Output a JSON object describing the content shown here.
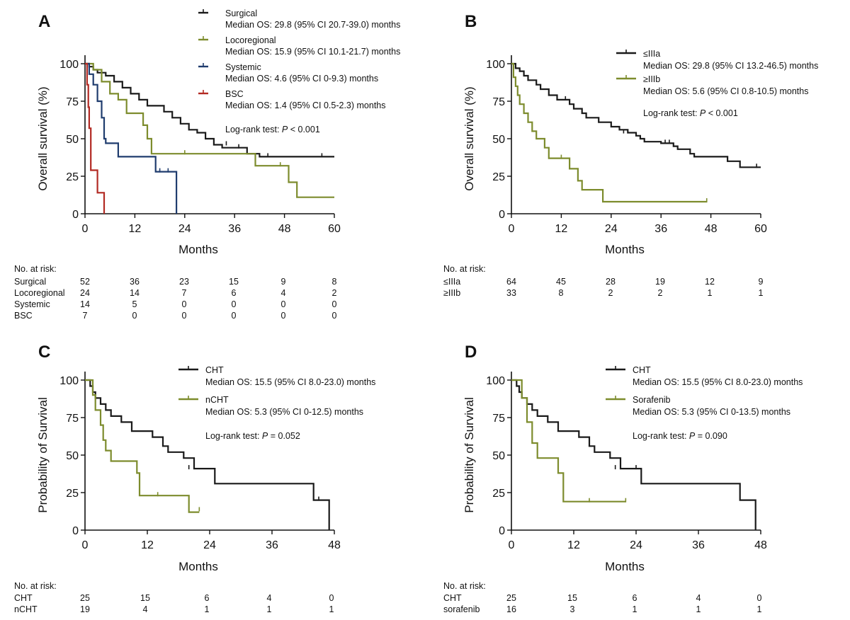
{
  "figure": {
    "panels": [
      {
        "letter": "A",
        "ylabel": "Overall survival (%)",
        "xlabel": "Months",
        "logrank_prefix": "Log-rank test: ",
        "logrank_p_symbol": "P",
        "logrank_suffix": " < 0.001",
        "risk_title": "No. at risk:",
        "risk_rows": [
          {
            "label": "Surgical",
            "values": [
              "52",
              "36",
              "23",
              "15",
              "9",
              "8"
            ]
          },
          {
            "label": "Locoregional",
            "values": [
              "24",
              "14",
              "7",
              "6",
              "4",
              "2"
            ]
          },
          {
            "label": "Systemic",
            "values": [
              "14",
              "5",
              "0",
              "0",
              "0",
              "0"
            ]
          },
          {
            "label": "BSC",
            "values": [
              "7",
              "0",
              "0",
              "0",
              "0",
              "0"
            ]
          }
        ]
      },
      {
        "letter": "B",
        "ylabel": "Overall survival (%)",
        "xlabel": "Months",
        "logrank_prefix": "Log-rank test: ",
        "logrank_p_symbol": "P",
        "logrank_suffix": " < 0.001",
        "risk_title": "No. at risk:",
        "risk_rows": [
          {
            "label": "≤IIIa",
            "values": [
              "64",
              "45",
              "28",
              "19",
              "12",
              "9"
            ]
          },
          {
            "label": "≥IIIb",
            "values": [
              "33",
              "8",
              "2",
              "2",
              "1",
              "1"
            ]
          }
        ]
      },
      {
        "letter": "C",
        "ylabel": "Probability of Survival",
        "xlabel": "Months",
        "logrank_prefix": "Log-rank test: ",
        "logrank_p_symbol": "P",
        "logrank_suffix": " = 0.052",
        "risk_title": "No. at risk:",
        "risk_rows": [
          {
            "label": "CHT",
            "values": [
              "25",
              "15",
              "6",
              "4",
              "0"
            ]
          },
          {
            "label": "nCHT",
            "values": [
              "19",
              "4",
              "1",
              "1",
              "1"
            ]
          }
        ]
      },
      {
        "letter": "D",
        "ylabel": "Probability of Survival",
        "xlabel": "Months",
        "logrank_prefix": "Log-rank test: ",
        "logrank_p_symbol": "P",
        "logrank_suffix": " = 0.090",
        "risk_title": "No. at risk:",
        "risk_rows": [
          {
            "label": "CHT",
            "values": [
              "25",
              "15",
              "6",
              "4",
              "0"
            ]
          },
          {
            "label": "sorafenib",
            "values": [
              "16",
              "3",
              "1",
              "1",
              "1"
            ]
          }
        ]
      }
    ]
  },
  "chart_data": [
    {
      "type": "line",
      "step": true,
      "xlabel": "Months",
      "ylabel": "Overall survival (%)",
      "xlim": [
        0,
        60
      ],
      "ylim": [
        0,
        100
      ],
      "xticks": [
        0,
        12,
        24,
        36,
        48,
        60
      ],
      "yticks": [
        0,
        25,
        50,
        75,
        100
      ],
      "series": [
        {
          "name": "Surgical",
          "median": "Median OS: 29.8 (95% CI 20.7-39.0) months",
          "color": "#1a1a1a",
          "points": [
            [
              0,
              100
            ],
            [
              1,
              98
            ],
            [
              2,
              96
            ],
            [
              3,
              94
            ],
            [
              5,
              92
            ],
            [
              7,
              88
            ],
            [
              9,
              84
            ],
            [
              11,
              80
            ],
            [
              13,
              76
            ],
            [
              15,
              72
            ],
            [
              19,
              68
            ],
            [
              21,
              64
            ],
            [
              23,
              60
            ],
            [
              25,
              56
            ],
            [
              27,
              54
            ],
            [
              29,
              50
            ],
            [
              31,
              46
            ],
            [
              33,
              44
            ],
            [
              39,
              40
            ],
            [
              42,
              38
            ],
            [
              60,
              38
            ]
          ],
          "censored": [
            [
              34,
              46
            ],
            [
              37,
              44
            ],
            [
              44,
              38
            ],
            [
              57,
              38
            ]
          ]
        },
        {
          "name": "Locoregional",
          "median": "Median OS: 15.9 (95% CI 10.1-21.7) months",
          "color": "#7d8c2d",
          "points": [
            [
              0,
              100
            ],
            [
              2,
              96
            ],
            [
              4,
              88
            ],
            [
              6,
              80
            ],
            [
              8,
              76
            ],
            [
              10,
              67
            ],
            [
              14,
              59
            ],
            [
              15,
              50
            ],
            [
              16,
              40
            ],
            [
              40,
              40
            ],
            [
              41,
              32
            ],
            [
              49,
              21
            ],
            [
              51,
              11
            ],
            [
              60,
              11
            ]
          ],
          "censored": [
            [
              24,
              40
            ],
            [
              47,
              32
            ]
          ]
        },
        {
          "name": "Systemic",
          "median": "Median OS: 4.6 (95% CI 0-9.3) months",
          "color": "#1f3c6e",
          "points": [
            [
              0,
              100
            ],
            [
              1,
              93
            ],
            [
              2,
              86
            ],
            [
              3,
              75
            ],
            [
              4,
              64
            ],
            [
              4.6,
              50
            ],
            [
              5,
              47
            ],
            [
              8,
              38
            ],
            [
              17,
              28
            ],
            [
              22,
              0
            ]
          ],
          "censored": [
            [
              18,
              28
            ],
            [
              20,
              28
            ]
          ]
        },
        {
          "name": "BSC",
          "median": "Median OS: 1.4 (95% CI 0.5-2.3) months",
          "color": "#b22a23",
          "points": [
            [
              0,
              100
            ],
            [
              0.5,
              86
            ],
            [
              0.8,
              71
            ],
            [
              1.0,
              57
            ],
            [
              1.4,
              29
            ],
            [
              3,
              14
            ],
            [
              4.6,
              0
            ]
          ],
          "censored": []
        }
      ]
    },
    {
      "type": "line",
      "step": true,
      "xlabel": "Months",
      "ylabel": "Overall survival (%)",
      "xlim": [
        0,
        60
      ],
      "ylim": [
        0,
        100
      ],
      "xticks": [
        0,
        12,
        24,
        36,
        48,
        60
      ],
      "yticks": [
        0,
        25,
        50,
        75,
        100
      ],
      "series": [
        {
          "name": "≤IIIa",
          "median": "Median OS: 29.8 (95% CI 13.2-46.5) months",
          "color": "#1a1a1a",
          "points": [
            [
              0,
              100
            ],
            [
              1,
              97
            ],
            [
              2,
              95
            ],
            [
              3,
              92
            ],
            [
              4,
              89
            ],
            [
              6,
              86
            ],
            [
              7,
              83
            ],
            [
              9,
              79
            ],
            [
              11,
              76
            ],
            [
              14,
              73
            ],
            [
              15,
              70
            ],
            [
              17,
              67
            ],
            [
              18,
              64
            ],
            [
              21,
              61
            ],
            [
              24,
              58
            ],
            [
              26,
              56
            ],
            [
              28,
              54
            ],
            [
              30,
              52
            ],
            [
              31,
              50
            ],
            [
              32,
              48
            ],
            [
              36,
              47
            ],
            [
              39,
              45
            ],
            [
              40,
              43
            ],
            [
              43,
              40
            ],
            [
              44,
              38
            ],
            [
              52,
              35
            ],
            [
              55,
              31
            ],
            [
              60,
              31
            ]
          ],
          "censored": [
            [
              13,
              76
            ],
            [
              27,
              54
            ],
            [
              37,
              47
            ],
            [
              38,
              47
            ],
            [
              59,
              31
            ]
          ]
        },
        {
          "name": "≥IIIb",
          "median": "Median OS: 5.6 (95% CI 0.8-10.5) months",
          "color": "#7d8c2d",
          "points": [
            [
              0,
              100
            ],
            [
              0.5,
              91
            ],
            [
              1,
              85
            ],
            [
              1.5,
              79
            ],
            [
              2,
              73
            ],
            [
              3,
              67
            ],
            [
              4,
              61
            ],
            [
              5,
              55
            ],
            [
              6,
              50
            ],
            [
              8,
              44
            ],
            [
              9,
              37
            ],
            [
              14,
              30
            ],
            [
              16,
              22
            ],
            [
              17,
              16
            ],
            [
              22,
              8
            ],
            [
              47,
              8
            ]
          ],
          "censored": [
            [
              12,
              37
            ],
            [
              22,
              8
            ],
            [
              47,
              8
            ]
          ]
        }
      ]
    },
    {
      "type": "line",
      "step": true,
      "xlabel": "Months",
      "ylabel": "Probability of Survival",
      "xlim": [
        0,
        48
      ],
      "ylim": [
        0,
        100
      ],
      "xticks": [
        0,
        12,
        24,
        36,
        48
      ],
      "yticks": [
        0,
        25,
        50,
        75,
        100
      ],
      "series": [
        {
          "name": "CHT",
          "median": "Median OS: 15.5 (95% CI  8.0-23.0) months",
          "color": "#1a1a1a",
          "points": [
            [
              0,
              100
            ],
            [
              1,
              96
            ],
            [
              1.5,
              92
            ],
            [
              2,
              88
            ],
            [
              3,
              84
            ],
            [
              4,
              80
            ],
            [
              5,
              76
            ],
            [
              7,
              72
            ],
            [
              9,
              66
            ],
            [
              13,
              62
            ],
            [
              15,
              56
            ],
            [
              16,
              52
            ],
            [
              19,
              48
            ],
            [
              21,
              41
            ],
            [
              25,
              31
            ],
            [
              44,
              20
            ],
            [
              47,
              0
            ]
          ],
          "censored": [
            [
              20,
              41
            ],
            [
              45,
              20
            ]
          ]
        },
        {
          "name": "nCHT",
          "median": "Median OS: 5.3 (95% CI  0-12.5) months",
          "color": "#7d8c2d",
          "points": [
            [
              0,
              100
            ],
            [
              1.5,
              90
            ],
            [
              2,
              80
            ],
            [
              3,
              70
            ],
            [
              3.5,
              60
            ],
            [
              4,
              53
            ],
            [
              5,
              46
            ],
            [
              10,
              38
            ],
            [
              10.5,
              23
            ],
            [
              20,
              12
            ],
            [
              22,
              12
            ]
          ],
          "censored": [
            [
              14,
              23
            ],
            [
              22,
              13
            ]
          ]
        }
      ]
    },
    {
      "type": "line",
      "step": true,
      "xlabel": "Months",
      "ylabel": "Probability of Survival",
      "xlim": [
        0,
        48
      ],
      "ylim": [
        0,
        100
      ],
      "xticks": [
        0,
        12,
        24,
        36,
        48
      ],
      "yticks": [
        0,
        25,
        50,
        75,
        100
      ],
      "series": [
        {
          "name": "CHT",
          "median": "Median OS: 15.5 (95% CI 8.0-23.0) months",
          "color": "#1a1a1a",
          "points": [
            [
              0,
              100
            ],
            [
              1,
              96
            ],
            [
              1.5,
              92
            ],
            [
              2,
              88
            ],
            [
              3,
              84
            ],
            [
              4,
              80
            ],
            [
              5,
              76
            ],
            [
              7,
              72
            ],
            [
              9,
              66
            ],
            [
              13,
              62
            ],
            [
              15,
              56
            ],
            [
              16,
              52
            ],
            [
              19,
              48
            ],
            [
              21,
              41
            ],
            [
              25,
              31
            ],
            [
              44,
              20
            ],
            [
              47,
              0
            ]
          ],
          "censored": [
            [
              20,
              41
            ],
            [
              24,
              41
            ]
          ]
        },
        {
          "name": "Sorafenib",
          "median": "Median OS: 5.3 (95% CI 0-13.5) months",
          "color": "#7d8c2d",
          "points": [
            [
              0,
              100
            ],
            [
              2,
              88
            ],
            [
              3,
              72
            ],
            [
              4,
              58
            ],
            [
              5,
              48
            ],
            [
              9,
              38
            ],
            [
              10,
              19
            ],
            [
              22,
              19
            ]
          ],
          "censored": [
            [
              15,
              19
            ],
            [
              22,
              19
            ]
          ]
        }
      ]
    }
  ]
}
